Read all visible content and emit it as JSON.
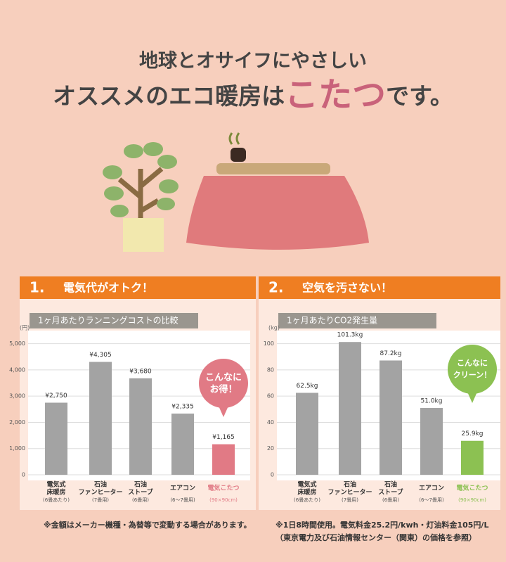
{
  "header": {
    "line1": "地球とオサイフにやさしい",
    "line2_before": "オススメのエコ暖房は",
    "line2_highlight": "こたつ",
    "line2_after": "です。"
  },
  "chart_data": [
    {
      "type": "bar",
      "section_number": "1.",
      "section_title": "電気代がオトク！",
      "title": "1ヶ月あたりランニングコストの比較",
      "unit": "(円)",
      "categories": [
        "電気式\n床暖房",
        "石油\nファンヒーター",
        "石油\nストーブ",
        "エアコン",
        "電気こたつ"
      ],
      "category_notes": [
        "(6畳あたり)",
        "(7畳用)",
        "(6畳用)",
        "(6〜7畳用)",
        "(90×90cm)"
      ],
      "values": [
        2750,
        4305,
        3680,
        2335,
        1165
      ],
      "value_labels": [
        "¥2,750",
        "¥4,305",
        "¥3,680",
        "¥2,335",
        "¥1,165"
      ],
      "colors": [
        "#a3a3a3",
        "#a3a3a3",
        "#a3a3a3",
        "#a3a3a3",
        "#e17a85"
      ],
      "ylim": [
        0,
        5500
      ],
      "yticks": [
        0,
        {
          "value": 1000,
          "label": "1,000"
        },
        {
          "value": 2000,
          "label": "2,000"
        },
        {
          "value": 3000,
          "label": "3,000"
        },
        {
          "value": 4000,
          "label": "4,000"
        },
        {
          "value": 5000,
          "label": "5,000"
        }
      ],
      "grid": true,
      "annotation": "こんなに\nお得！",
      "note": [
        "※金額はメーカー機種・為替等で変動する場合があります。"
      ]
    },
    {
      "type": "bar",
      "section_number": "2.",
      "section_title": "空気を汚さない！",
      "title": "1ヶ月あたりCO2発生量",
      "unit": "(kg)",
      "categories": [
        "電気式\n床暖房",
        "石油\nファンヒーター",
        "石油\nストーブ",
        "エアコン",
        "電気こたつ"
      ],
      "category_notes": [
        "(6畳あたり)",
        "(7畳用)",
        "(6畳用)",
        "(6〜7畳用)",
        "(90×90cm)"
      ],
      "values": [
        62.5,
        101.3,
        87.2,
        51.0,
        25.9
      ],
      "value_labels": [
        "62.5kg",
        "101.3kg",
        "87.2kg",
        "51.0kg",
        "25.9kg"
      ],
      "colors": [
        "#a3a3a3",
        "#a3a3a3",
        "#a3a3a3",
        "#a3a3a3",
        "#8cc152"
      ],
      "ylim": [
        0,
        110
      ],
      "yticks": [
        0,
        20,
        40,
        60,
        80,
        100
      ],
      "grid": true,
      "annotation": "こんなに\nクリーン！",
      "note": [
        "※1日8時間使用。電気料金25.2円/kwh・灯油料金105円/L",
        "（東京電力及び石油情報センター（関東）の価格を参照）"
      ]
    }
  ]
}
